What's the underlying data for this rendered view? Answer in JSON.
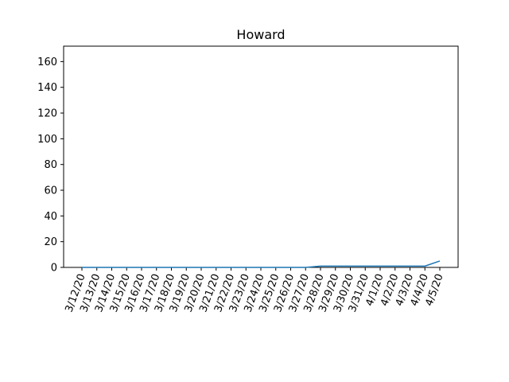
{
  "chart_data": {
    "type": "line",
    "title": "Howard",
    "xlabel": "",
    "ylabel": "",
    "categories": [
      "3/12/20",
      "3/13/20",
      "3/14/20",
      "3/15/20",
      "3/16/20",
      "3/17/20",
      "3/18/20",
      "3/19/20",
      "3/20/20",
      "3/21/20",
      "3/22/20",
      "3/23/20",
      "3/24/20",
      "3/25/20",
      "3/26/20",
      "3/27/20",
      "3/28/20",
      "3/29/20",
      "3/30/20",
      "3/31/20",
      "4/1/20",
      "4/2/20",
      "4/3/20",
      "4/4/20",
      "4/5/20"
    ],
    "series": [
      {
        "values": [
          0,
          0,
          0,
          0,
          0,
          0,
          0,
          0,
          0,
          0,
          0,
          0,
          0,
          0,
          0,
          0,
          1,
          1,
          1,
          1,
          1,
          1,
          1,
          1,
          5
        ],
        "color": "#1f77b4"
      }
    ],
    "ylim": [
      0,
      172
    ],
    "yticks": [
      0,
      20,
      40,
      60,
      80,
      100,
      120,
      140,
      160
    ],
    "grid": false,
    "legend": "none"
  }
}
